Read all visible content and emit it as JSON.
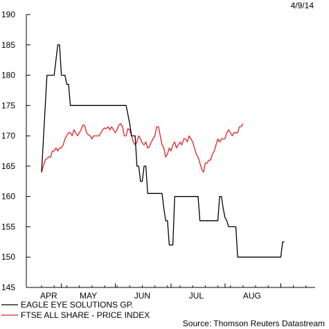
{
  "header": {
    "date": "4/9/14"
  },
  "source": "Source: Thomson Reuters Datastream",
  "colors": {
    "series_1": "#000000",
    "series_2": "#e02020",
    "axis": "#000000"
  },
  "chart_data": {
    "type": "line",
    "ylim": [
      145,
      190
    ],
    "yticks": [
      145,
      150,
      155,
      160,
      165,
      170,
      175,
      180,
      185,
      190
    ],
    "x_tick_labels": [
      "APR",
      "MAY",
      "JUN",
      "JUL",
      "AUG"
    ],
    "x_range_days": [
      0,
      149
    ],
    "legend_position": "bottom-left",
    "grid": false,
    "series": [
      {
        "name": "EAGLE EYE SOLUTIONS GP.",
        "color": "#000000",
        "points": [
          [
            0,
            164
          ],
          [
            3,
            180
          ],
          [
            5,
            180
          ],
          [
            7,
            180
          ],
          [
            9,
            185
          ],
          [
            10,
            185
          ],
          [
            11,
            180
          ],
          [
            12,
            180
          ],
          [
            13,
            180
          ],
          [
            14,
            178.5
          ],
          [
            15,
            178.5
          ],
          [
            16,
            175
          ],
          [
            18,
            175
          ],
          [
            24,
            175
          ],
          [
            30,
            175
          ],
          [
            36,
            175
          ],
          [
            42,
            175
          ],
          [
            46,
            175
          ],
          [
            47,
            175
          ],
          [
            49,
            172
          ],
          [
            50,
            170
          ],
          [
            52,
            170
          ],
          [
            53,
            165
          ],
          [
            54,
            165
          ],
          [
            55,
            162.5
          ],
          [
            56,
            162.5
          ],
          [
            57,
            165
          ],
          [
            58,
            165
          ],
          [
            59,
            160.5
          ],
          [
            61,
            160.5
          ],
          [
            63,
            160.5
          ],
          [
            65,
            160.5
          ],
          [
            66,
            160.5
          ],
          [
            67,
            160.5
          ],
          [
            68,
            158
          ],
          [
            69,
            156
          ],
          [
            70,
            156
          ],
          [
            71,
            152
          ],
          [
            72,
            152
          ],
          [
            73,
            152
          ],
          [
            74,
            160
          ],
          [
            78,
            160
          ],
          [
            82,
            160
          ],
          [
            86,
            160
          ],
          [
            87,
            160
          ],
          [
            88,
            156
          ],
          [
            92,
            156
          ],
          [
            96,
            156
          ],
          [
            98,
            156
          ],
          [
            99,
            160
          ],
          [
            100,
            160
          ],
          [
            101,
            158
          ],
          [
            102,
            156.5
          ],
          [
            103,
            156
          ],
          [
            104,
            155
          ],
          [
            106,
            155
          ],
          [
            108,
            155
          ],
          [
            109,
            150
          ],
          [
            115,
            150
          ],
          [
            121,
            150
          ],
          [
            127,
            150
          ],
          [
            132,
            150
          ],
          [
            133,
            150
          ],
          [
            134,
            152.5
          ],
          [
            135,
            152.5
          ]
        ]
      },
      {
        "name": "FTSE ALL SHARE - PRICE INDEX",
        "color": "#e02020",
        "points": [
          [
            0,
            164
          ],
          [
            2,
            166
          ],
          [
            4,
            166.5
          ],
          [
            5,
            166.5
          ],
          [
            6,
            167.5
          ],
          [
            7,
            167.5
          ],
          [
            8,
            168
          ],
          [
            9,
            167.5
          ],
          [
            10,
            168
          ],
          [
            11,
            168
          ],
          [
            12,
            168.5
          ],
          [
            13,
            169.5
          ],
          [
            14,
            170
          ],
          [
            15,
            170.5
          ],
          [
            16,
            170.5
          ],
          [
            17,
            170
          ],
          [
            18,
            171
          ],
          [
            19,
            170.5
          ],
          [
            20,
            170
          ],
          [
            21,
            170.5
          ],
          [
            22,
            171
          ],
          [
            23,
            171.8
          ],
          [
            24,
            171.7
          ],
          [
            25,
            170.5
          ],
          [
            26,
            170.2
          ],
          [
            27,
            170
          ],
          [
            28,
            169.5
          ],
          [
            29,
            170
          ],
          [
            30,
            170
          ],
          [
            31,
            170
          ],
          [
            32,
            170
          ],
          [
            33,
            170.5
          ],
          [
            34,
            171
          ],
          [
            35,
            171.3
          ],
          [
            36,
            171.2
          ],
          [
            37,
            171.5
          ],
          [
            38,
            171
          ],
          [
            39,
            171.5
          ],
          [
            40,
            171
          ],
          [
            41,
            170.5
          ],
          [
            42,
            171
          ],
          [
            43,
            171.8
          ],
          [
            44,
            172
          ],
          [
            45,
            171.5
          ],
          [
            46,
            170
          ],
          [
            47,
            170
          ],
          [
            48,
            171.2
          ],
          [
            49,
            171
          ],
          [
            50,
            170
          ],
          [
            51,
            169
          ],
          [
            52,
            168.5
          ],
          [
            53,
            169
          ],
          [
            54,
            170
          ],
          [
            55,
            169.5
          ],
          [
            56,
            168.8
          ],
          [
            57,
            168.5
          ],
          [
            58,
            169
          ],
          [
            59,
            168
          ],
          [
            60,
            168.2
          ],
          [
            61,
            169
          ],
          [
            62,
            169.5
          ],
          [
            63,
            170
          ],
          [
            64,
            171.5
          ],
          [
            65,
            171.5
          ],
          [
            66,
            170
          ],
          [
            67,
            168.5
          ],
          [
            68,
            168
          ],
          [
            69,
            166.5
          ],
          [
            70,
            167
          ],
          [
            71,
            168
          ],
          [
            72,
            167.5
          ],
          [
            73,
            168.5
          ],
          [
            74,
            169
          ],
          [
            75,
            168
          ],
          [
            76,
            168.5
          ],
          [
            77,
            169
          ],
          [
            78,
            168.5
          ],
          [
            79,
            169.5
          ],
          [
            80,
            169.5
          ],
          [
            81,
            169
          ],
          [
            82,
            170
          ],
          [
            83,
            169.5
          ],
          [
            84,
            169
          ],
          [
            85,
            168
          ],
          [
            86,
            167
          ],
          [
            87,
            166.5
          ],
          [
            88,
            165.5
          ],
          [
            89,
            164.5
          ],
          [
            90,
            164
          ],
          [
            91,
            165.5
          ],
          [
            92,
            165.5
          ],
          [
            93,
            166
          ],
          [
            94,
            166
          ],
          [
            95,
            167
          ],
          [
            96,
            167.5
          ],
          [
            97,
            168.5
          ],
          [
            98,
            169.5
          ],
          [
            99,
            169
          ],
          [
            100,
            169.5
          ],
          [
            101,
            169.5
          ],
          [
            102,
            169.5
          ],
          [
            103,
            170.5
          ],
          [
            104,
            171
          ],
          [
            105,
            170.5
          ],
          [
            106,
            170
          ],
          [
            107,
            170.5
          ],
          [
            108,
            170.5
          ],
          [
            109,
            170.5
          ],
          [
            110,
            171.5
          ],
          [
            111,
            171.5
          ],
          [
            112,
            172
          ]
        ]
      }
    ]
  }
}
